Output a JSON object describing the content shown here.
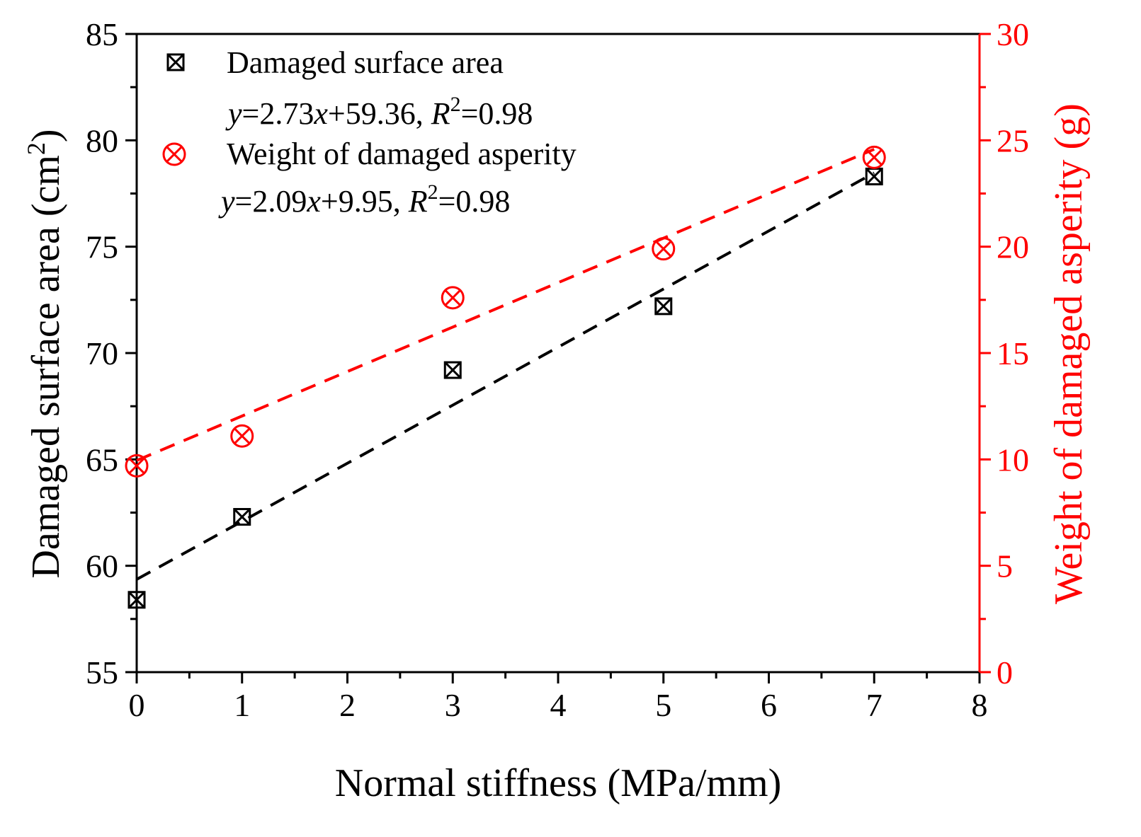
{
  "chart_data": {
    "type": "scatter",
    "xlabel": "Normal stiffness (MPa/mm)",
    "ylabel_left": {
      "main": "Damaged surface area (cm",
      "sup": "2",
      "close": ")"
    },
    "ylabel_right": "Weight  of damaged asperity (g)",
    "xlim": [
      0,
      8
    ],
    "ylim_left": [
      55,
      85
    ],
    "ylim_right": [
      0,
      30
    ],
    "x_ticks": [
      "0",
      "1",
      "2",
      "3",
      "4",
      "5",
      "6",
      "7",
      "8"
    ],
    "y_left_ticks": [
      "55",
      "60",
      "65",
      "70",
      "75",
      "80",
      "85"
    ],
    "y_right_ticks": [
      "0",
      "5",
      "10",
      "15",
      "20",
      "25",
      "30"
    ],
    "series": [
      {
        "name": "Damaged surface area",
        "axis": "left",
        "color": "#000000",
        "marker": "square-x",
        "x": [
          0,
          1,
          3,
          5,
          7
        ],
        "values": [
          58.4,
          62.3,
          69.2,
          72.2,
          78.3
        ],
        "fit": {
          "slope": 2.73,
          "intercept": 59.36,
          "x_range": [
            0,
            7
          ]
        },
        "equation": {
          "y": "y",
          "eq1": "=2.73",
          "x": "x",
          "eq2": "+59.36, ",
          "R": "R",
          "sup": "2",
          "eq3": "=0.98"
        }
      },
      {
        "name": "Weight of damaged asperity",
        "axis": "right",
        "color": "#ff0000",
        "marker": "circle-x",
        "x": [
          0,
          1,
          3,
          5,
          7
        ],
        "values": [
          9.7,
          11.1,
          17.6,
          19.9,
          24.2
        ],
        "fit": {
          "slope": 2.09,
          "intercept": 9.95,
          "x_range": [
            0,
            7
          ]
        },
        "equation": {
          "y": "y",
          "eq1": "=2.09",
          "x": "x",
          "eq2": "+9.95, ",
          "R": "R",
          "sup": "2",
          "eq3": "=0.98"
        }
      }
    ]
  },
  "colors": {
    "left_axis": "#000000",
    "right_axis": "#ff0000",
    "fit_black": "#000000",
    "fit_red": "#ff0000"
  }
}
